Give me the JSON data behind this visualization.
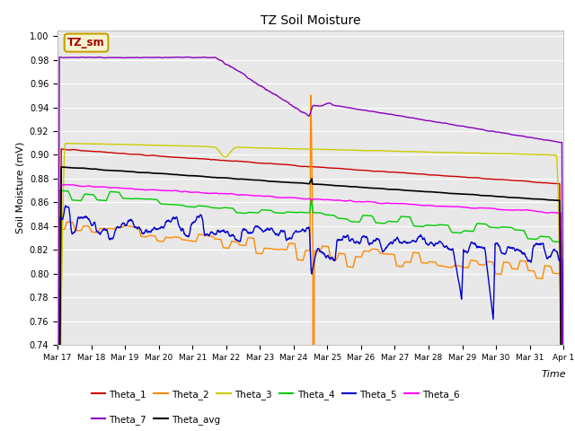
{
  "title": "TZ Soil Moisture",
  "xlabel": "Time",
  "ylabel": "Soil Moisture (mV)",
  "ylim": [
    0.74,
    1.005
  ],
  "yticks": [
    0.74,
    0.76,
    0.78,
    0.8,
    0.82,
    0.84,
    0.86,
    0.88,
    0.9,
    0.92,
    0.94,
    0.96,
    0.98,
    1.0
  ],
  "bg_color": "#e8e8e8",
  "fig_color": "#ffffff",
  "legend_label": "TZ_sm",
  "legend_box_color": "#f5f5d0",
  "legend_box_edge": "#c8a000",
  "series_order": [
    "Theta_1",
    "Theta_2",
    "Theta_3",
    "Theta_4",
    "Theta_5",
    "Theta_6",
    "Theta_7",
    "Theta_avg"
  ],
  "legend_row1": [
    "Theta_1",
    "Theta_2",
    "Theta_3",
    "Theta_4",
    "Theta_5",
    "Theta_6"
  ],
  "legend_row2": [
    "Theta_7",
    "Theta_avg"
  ],
  "series": {
    "Theta_1": {
      "color": "#cc0000",
      "lw": 1.0
    },
    "Theta_2": {
      "color": "#ff8800",
      "lw": 1.0
    },
    "Theta_3": {
      "color": "#cccc00",
      "lw": 1.0
    },
    "Theta_4": {
      "color": "#00cc00",
      "lw": 1.0
    },
    "Theta_5": {
      "color": "#0000cc",
      "lw": 1.0
    },
    "Theta_6": {
      "color": "#ff00ff",
      "lw": 1.0
    },
    "Theta_7": {
      "color": "#8800bb",
      "lw": 1.0
    },
    "Theta_avg": {
      "color": "#000000",
      "lw": 1.2
    }
  },
  "n_days": 16,
  "spike_day": 8,
  "date_labels": [
    "Mar 17",
    "Mar 18",
    "Mar 19",
    "Mar 20",
    "Mar 21",
    "Mar 22",
    "Mar 23",
    "Mar 24",
    "Mar 25",
    "Mar 26",
    "Mar 27",
    "Mar 28",
    "Mar 29",
    "Mar 30",
    "Mar 31",
    "Apr 1"
  ]
}
